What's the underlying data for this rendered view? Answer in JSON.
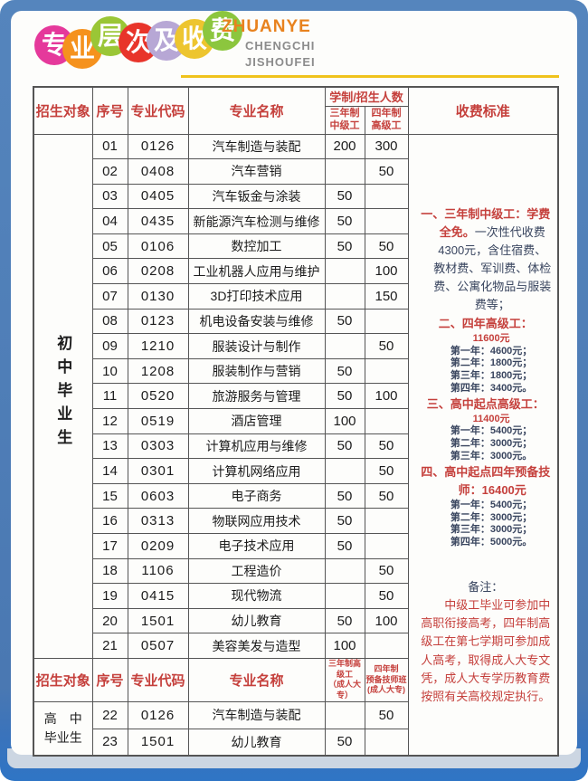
{
  "masthead": {
    "bubbles": [
      {
        "char": "专",
        "color": "#e5399b"
      },
      {
        "char": "业",
        "color": "#f5921e"
      },
      {
        "char": "层",
        "color": "#9ac636"
      },
      {
        "char": "次",
        "color": "#e8342a"
      },
      {
        "char": "及",
        "color": "#b7a7d5"
      },
      {
        "char": "收",
        "color": "#edc52f"
      },
      {
        "char": "费",
        "color": "#8cc63e"
      }
    ],
    "title_text": "专业层次及收费",
    "pinyin_lines": [
      "ZHUANYE",
      "CHENGCHI",
      "JISHOUFEI"
    ],
    "pinyin_colors": [
      "#e8821e",
      "#8c8c8c",
      "#8c8c8c"
    ],
    "underline_color": "#f0c31c"
  },
  "table": {
    "header1": {
      "audience": "招生对象",
      "no": "序号",
      "code": "专业代码",
      "name": "专业名称",
      "span_label": "学制/招生人数",
      "sub3": "三年制\n中级工",
      "sub4": "四年制\n高级工",
      "fees": "收费标准"
    },
    "group1_label": "初中毕业生",
    "rows1": [
      {
        "no": "01",
        "code": "0126",
        "name": "汽车制造与装配",
        "three": "200",
        "four": "300"
      },
      {
        "no": "02",
        "code": "0408",
        "name": "汽车营销",
        "three": "",
        "four": "50"
      },
      {
        "no": "03",
        "code": "0405",
        "name": "汽车钣金与涂装",
        "three": "50",
        "four": ""
      },
      {
        "no": "04",
        "code": "0435",
        "name": "新能源汽车检测与维修",
        "three": "50",
        "four": ""
      },
      {
        "no": "05",
        "code": "0106",
        "name": "数控加工",
        "three": "50",
        "four": "50"
      },
      {
        "no": "06",
        "code": "0208",
        "name": "工业机器人应用与维护",
        "three": "",
        "four": "100"
      },
      {
        "no": "07",
        "code": "0130",
        "name": "3D打印技术应用",
        "three": "",
        "four": "150"
      },
      {
        "no": "08",
        "code": "0123",
        "name": "机电设备安装与维修",
        "three": "50",
        "four": ""
      },
      {
        "no": "09",
        "code": "1210",
        "name": "服装设计与制作",
        "three": "",
        "four": "50"
      },
      {
        "no": "10",
        "code": "1208",
        "name": "服装制作与营销",
        "three": "50",
        "four": ""
      },
      {
        "no": "11",
        "code": "0520",
        "name": "旅游服务与管理",
        "three": "50",
        "four": "100"
      },
      {
        "no": "12",
        "code": "0519",
        "name": "酒店管理",
        "three": "100",
        "four": ""
      },
      {
        "no": "13",
        "code": "0303",
        "name": "计算机应用与维修",
        "three": "50",
        "four": "50"
      },
      {
        "no": "14",
        "code": "0301",
        "name": "计算机网络应用",
        "three": "",
        "four": "50"
      },
      {
        "no": "15",
        "code": "0603",
        "name": "电子商务",
        "three": "50",
        "four": "50"
      },
      {
        "no": "16",
        "code": "0313",
        "name": "物联网应用技术",
        "three": "50",
        "four": ""
      },
      {
        "no": "17",
        "code": "0209",
        "name": "电子技术应用",
        "three": "50",
        "four": ""
      },
      {
        "no": "18",
        "code": "1106",
        "name": "工程造价",
        "three": "",
        "four": "50"
      },
      {
        "no": "19",
        "code": "0415",
        "name": "现代物流",
        "three": "",
        "four": "50"
      },
      {
        "no": "20",
        "code": "1501",
        "name": "幼儿教育",
        "three": "50",
        "four": "100"
      },
      {
        "no": "21",
        "code": "0507",
        "name": "美容美发与造型",
        "three": "100",
        "four": ""
      }
    ],
    "header2": {
      "audience": "招生对象",
      "no": "序号",
      "code": "专业代码",
      "name": "专业名称",
      "sub3": "三年制高级工\n（成人大专）",
      "sub4": "四年制\n预备技师班\n(成人大专)"
    },
    "group2_label": "高　中\n毕业生",
    "rows2": [
      {
        "no": "22",
        "code": "0126",
        "name": "汽车制造与装配",
        "three": "",
        "four": "50"
      },
      {
        "no": "23",
        "code": "1501",
        "name": "幼儿教育",
        "three": "50",
        "four": ""
      }
    ]
  },
  "fees": {
    "blocks": [
      {
        "style": "item",
        "parts": [
          {
            "text": "一、三年制中级工：学费全免。",
            "color": "red"
          },
          {
            "text": "一次性代收费4300元，含住宿费、教材费、军训费、体检费、公寓化物品与服装费等；",
            "color": "navy"
          }
        ]
      },
      {
        "style": "item",
        "parts": [
          {
            "text": "二、四年高级工：",
            "color": "red"
          }
        ]
      },
      {
        "style": "sub",
        "parts": [
          {
            "text": "11600元",
            "color": "red"
          }
        ]
      },
      {
        "style": "sub",
        "parts": [
          {
            "text": "第一年：4600元；",
            "color": "navy"
          }
        ]
      },
      {
        "style": "sub",
        "parts": [
          {
            "text": "第二年：1800元；",
            "color": "navy"
          }
        ]
      },
      {
        "style": "sub",
        "parts": [
          {
            "text": "第三年：1800元；",
            "color": "navy"
          }
        ]
      },
      {
        "style": "sub",
        "parts": [
          {
            "text": "第四年：3400元。",
            "color": "navy"
          }
        ]
      },
      {
        "style": "item",
        "parts": [
          {
            "text": "三、高中起点高级工：",
            "color": "red"
          }
        ]
      },
      {
        "style": "sub",
        "parts": [
          {
            "text": "11400元",
            "color": "red"
          }
        ]
      },
      {
        "style": "sub",
        "parts": [
          {
            "text": "第一年：5400元；",
            "color": "navy"
          }
        ]
      },
      {
        "style": "sub",
        "parts": [
          {
            "text": "第二年：3000元；",
            "color": "navy"
          }
        ]
      },
      {
        "style": "sub",
        "parts": [
          {
            "text": "第三年：3000元。",
            "color": "navy"
          }
        ]
      },
      {
        "style": "item",
        "parts": [
          {
            "text": "四、高中起点四年预备技师：",
            "color": "red"
          },
          {
            "text": "16400元",
            "color": "red"
          }
        ]
      },
      {
        "style": "sub",
        "parts": [
          {
            "text": "第一年：5400元；",
            "color": "navy"
          }
        ]
      },
      {
        "style": "sub",
        "parts": [
          {
            "text": "第二年：3000元；",
            "color": "navy"
          }
        ]
      },
      {
        "style": "sub",
        "parts": [
          {
            "text": "第三年：3000元；",
            "color": "navy"
          }
        ]
      },
      {
        "style": "sub",
        "parts": [
          {
            "text": "第四年：5000元。",
            "color": "navy"
          }
        ]
      },
      {
        "style": "note",
        "parts": [
          {
            "text": "备注：",
            "color": "navy"
          }
        ]
      },
      {
        "style": "remark",
        "parts": [
          {
            "text": "中级工毕业可参加中高职衔接高考，四年制高级工在第七学期可参加成人高考，取得成人大专文凭，成人大专学历教育费按照有关高校规定执行。",
            "color": "red"
          }
        ]
      }
    ]
  },
  "colors": {
    "frame_blue": "#4d7cb8",
    "bottom_strip": "#2f75c5",
    "band": "#ccd6e2",
    "card_bg": "#fdfdfb",
    "header_red": "#c5403c",
    "body_navy": "#39455f",
    "table_border": "#555555"
  }
}
